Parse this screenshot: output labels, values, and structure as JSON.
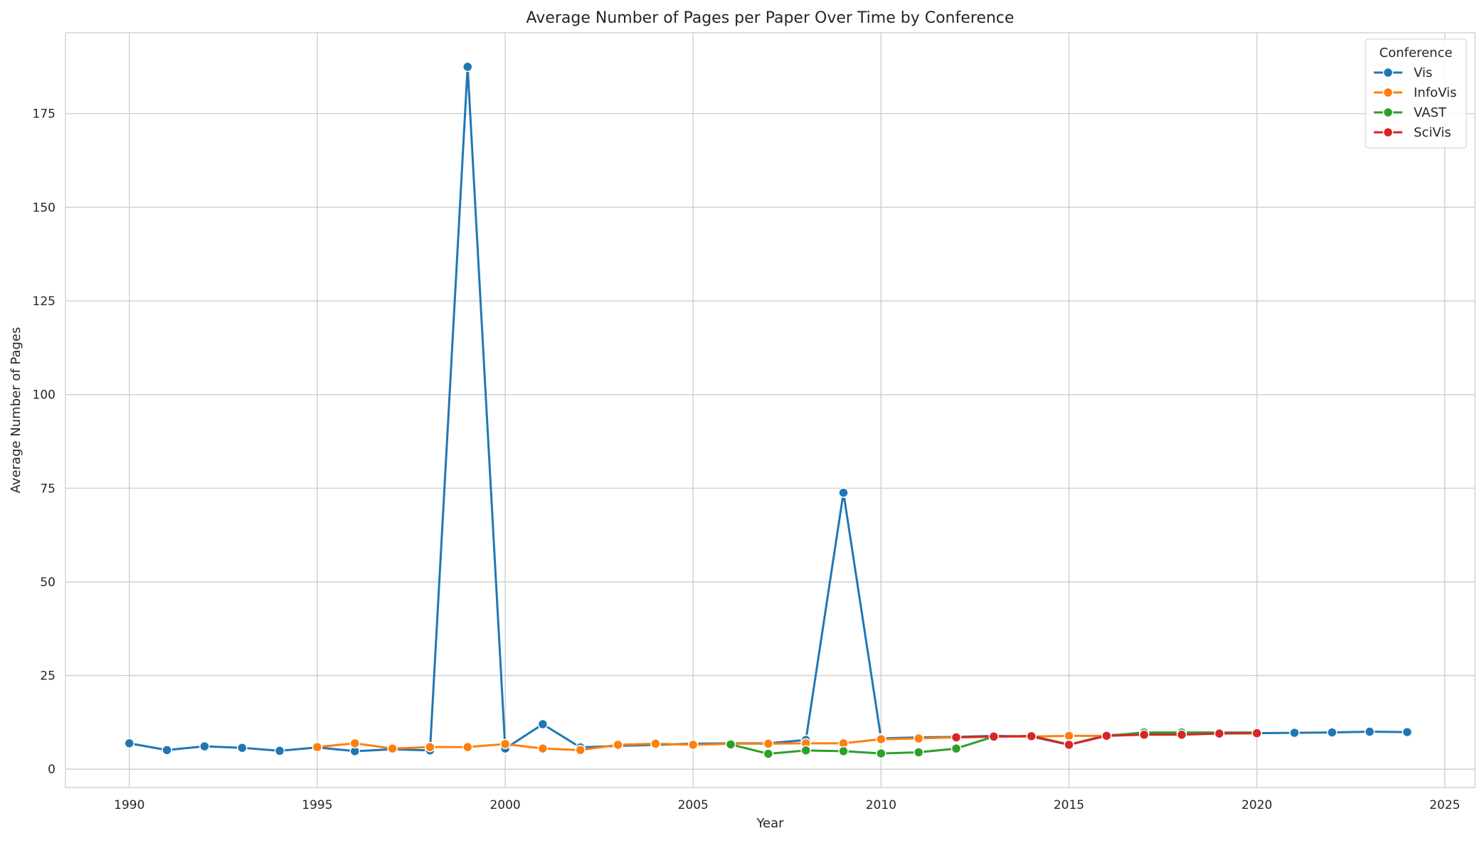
{
  "chart_data": {
    "type": "line",
    "title": "Average Number of Pages per Paper Over Time by Conference",
    "xlabel": "Year",
    "ylabel": "Average Number of Pages",
    "xlim": [
      1988.3,
      2025.8
    ],
    "ylim": [
      -4.9,
      196.6
    ],
    "xticks": [
      1990,
      1995,
      2000,
      2005,
      2010,
      2015,
      2020,
      2025
    ],
    "yticks": [
      0,
      25,
      50,
      75,
      100,
      125,
      150,
      175
    ],
    "grid": true,
    "legend": {
      "title": "Conference",
      "placement": "top-right"
    },
    "series": [
      {
        "name": "Vis",
        "color": "#1f77b4",
        "points": [
          [
            1990,
            6.9
          ],
          [
            1991,
            5.1
          ],
          [
            1992,
            6.1
          ],
          [
            1993,
            5.7
          ],
          [
            1994,
            4.9
          ],
          [
            1995,
            5.8
          ],
          [
            1996,
            4.8
          ],
          [
            1997,
            5.3
          ],
          [
            1998,
            5.0
          ],
          [
            1999,
            187.5
          ],
          [
            2000,
            5.5
          ],
          [
            2001,
            12.0
          ],
          [
            2002,
            5.8
          ],
          [
            2003,
            6.2
          ],
          [
            2004,
            6.5
          ],
          [
            2005,
            6.8
          ],
          [
            2006,
            6.9
          ],
          [
            2007,
            6.9
          ],
          [
            2008,
            7.8
          ],
          [
            2009,
            73.8
          ],
          [
            2010,
            8.2
          ],
          [
            2011,
            8.5
          ],
          [
            2012,
            8.6
          ],
          [
            2013,
            8.9
          ],
          [
            2014,
            8.7
          ],
          [
            2015,
            6.5
          ],
          [
            2016,
            9.1
          ],
          [
            2017,
            9.3
          ],
          [
            2018,
            9.4
          ],
          [
            2019,
            9.5
          ],
          [
            2020,
            9.6
          ],
          [
            2021,
            9.7
          ],
          [
            2022,
            9.8
          ],
          [
            2023,
            10.0
          ],
          [
            2024,
            9.9
          ]
        ]
      },
      {
        "name": "InfoVis",
        "color": "#ff7f0e",
        "points": [
          [
            1995,
            5.9
          ],
          [
            1996,
            6.9
          ],
          [
            1997,
            5.5
          ],
          [
            1998,
            5.9
          ],
          [
            1999,
            5.9
          ],
          [
            2000,
            6.7
          ],
          [
            2001,
            5.5
          ],
          [
            2002,
            5.1
          ],
          [
            2003,
            6.5
          ],
          [
            2004,
            6.8
          ],
          [
            2005,
            6.5
          ],
          [
            2006,
            6.8
          ],
          [
            2007,
            6.8
          ],
          [
            2008,
            6.9
          ],
          [
            2009,
            6.9
          ],
          [
            2010,
            8.0
          ],
          [
            2011,
            8.2
          ],
          [
            2012,
            8.5
          ],
          [
            2013,
            8.7
          ],
          [
            2014,
            8.7
          ],
          [
            2015,
            8.9
          ],
          [
            2016,
            8.9
          ]
        ]
      },
      {
        "name": "VAST",
        "color": "#2ca02c",
        "points": [
          [
            2006,
            6.6
          ],
          [
            2007,
            4.1
          ],
          [
            2008,
            5.0
          ],
          [
            2009,
            4.8
          ],
          [
            2010,
            4.2
          ],
          [
            2011,
            4.5
          ],
          [
            2012,
            5.5
          ],
          [
            2013,
            8.7
          ],
          [
            2014,
            8.9
          ],
          [
            2015,
            6.6
          ],
          [
            2016,
            8.9
          ],
          [
            2017,
            9.8
          ],
          [
            2018,
            9.8
          ],
          [
            2019,
            9.8
          ],
          [
            2020,
            9.8
          ]
        ]
      },
      {
        "name": "SciVis",
        "color": "#d62728",
        "points": [
          [
            2012,
            8.5
          ],
          [
            2013,
            8.7
          ],
          [
            2014,
            8.8
          ],
          [
            2015,
            6.5
          ],
          [
            2016,
            8.9
          ],
          [
            2017,
            9.2
          ],
          [
            2018,
            9.2
          ],
          [
            2019,
            9.5
          ],
          [
            2020,
            9.6
          ]
        ]
      }
    ]
  }
}
